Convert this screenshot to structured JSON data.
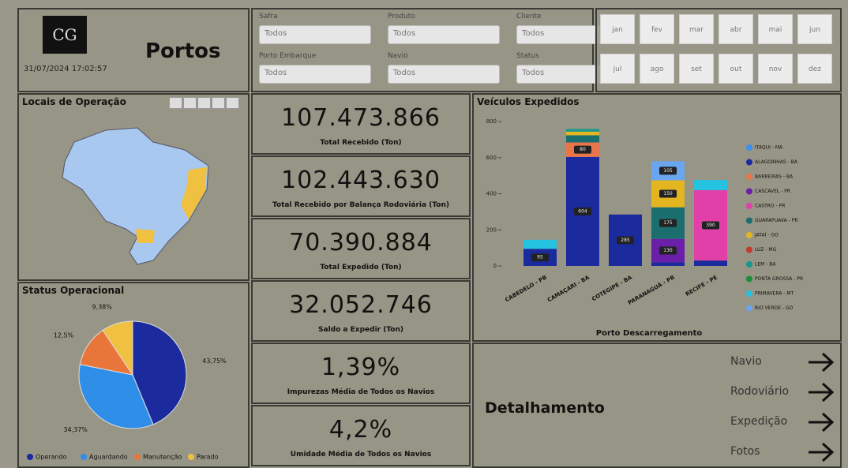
{
  "header": {
    "logo": "CG",
    "title": "Portos",
    "updated": "31/07/2024 17:02:57"
  },
  "filters": [
    {
      "label": "Safra",
      "value": "Todos"
    },
    {
      "label": "Produto",
      "value": "Todos"
    },
    {
      "label": "Cliente",
      "value": "Todos"
    },
    {
      "label": "Porto Embarque",
      "value": "Todos"
    },
    {
      "label": "Navio",
      "value": "Todos"
    },
    {
      "label": "Status",
      "value": "Todos"
    }
  ],
  "months": [
    "jan",
    "fev",
    "mar",
    "abr",
    "mai",
    "jun",
    "jul",
    "ago",
    "set",
    "out",
    "nov",
    "dez"
  ],
  "map": {
    "title": "Locais de Operação"
  },
  "kpis": [
    {
      "value": "107.473.866",
      "label": "Total Recebido (Ton)"
    },
    {
      "value": "102.443.630",
      "label": "Total Recebido por Balança Rodoviária (Ton)"
    },
    {
      "value": "70.390.884",
      "label": "Total Expedido (Ton)"
    },
    {
      "value": "32.052.746",
      "label": "Saldo a Expedir (Ton)"
    },
    {
      "value": "1,39%",
      "label": "Impurezas Média de Todos os Navios"
    },
    {
      "value": "4,2%",
      "label": "Umidade Média de Todos os Navios"
    }
  ],
  "detail": {
    "title": "Detalhamento",
    "links": [
      "Navio",
      "Rodoviário",
      "Expedição",
      "Fotos"
    ]
  },
  "chart_data": [
    {
      "type": "bar",
      "stacked": true,
      "title": "Veículos Expedidos",
      "xlabel": "Porto Descarregamento",
      "categories": [
        "CABEDELO - PB",
        "CAMAÇARI - BA",
        "COTEGIPE - BA",
        "PARANAGUÁ - PR",
        "RECIFE - PE"
      ],
      "ylim": [
        0,
        800
      ],
      "yticks": [
        0,
        200,
        400,
        600,
        800
      ],
      "series": [
        {
          "name": "ITAQUI - MA",
          "color": "#3d8ff0",
          "values": [
            null,
            null,
            null,
            null,
            null
          ]
        },
        {
          "name": "ALAGOINHAS - BA",
          "color": "#1b2a9c",
          "values": [
            95,
            604,
            285,
            20,
            30
          ]
        },
        {
          "name": "BARREIRAS - BA",
          "color": "#e8764a",
          "values": [
            null,
            80,
            null,
            null,
            null
          ]
        },
        {
          "name": "CASCAVEL - PR",
          "color": "#6a1fa8",
          "values": [
            null,
            null,
            null,
            130,
            null
          ]
        },
        {
          "name": "CASTRO - PR",
          "color": "#e040a8",
          "values": [
            null,
            null,
            null,
            null,
            390
          ]
        },
        {
          "name": "GUARAPUAVA - PR",
          "color": "#1b6e6e",
          "values": [
            null,
            40,
            null,
            175,
            null
          ]
        },
        {
          "name": "JATAÍ - GO",
          "color": "#e3b520",
          "values": [
            null,
            20,
            null,
            150,
            null
          ]
        },
        {
          "name": "LUZ - MG",
          "color": "#c43a2a",
          "values": [
            null,
            null,
            null,
            null,
            null
          ]
        },
        {
          "name": "LEM - BA",
          "color": "#17998a",
          "values": [
            null,
            15,
            null,
            null,
            null
          ]
        },
        {
          "name": "PONTA GROSSA - PR",
          "color": "#1e8c3a",
          "values": [
            null,
            null,
            null,
            null,
            null
          ]
        },
        {
          "name": "PRIMAVERA - MT",
          "color": "#24c3e0",
          "values": [
            50,
            null,
            null,
            null,
            56
          ]
        },
        {
          "name": "RIO VERDE - GO",
          "color": "#6aa5f0",
          "values": [
            null,
            null,
            null,
            105,
            null
          ]
        }
      ],
      "legend": "right"
    },
    {
      "type": "pie",
      "title": "Status Operacional",
      "categories": [
        "Operando",
        "Aguardando",
        "Manutenção",
        "Parado"
      ],
      "values": [
        43.75,
        34.37,
        12.5,
        9.38
      ],
      "value_labels": [
        "43,75%",
        "34,37%",
        "12,5%",
        "9,38%"
      ],
      "colors": [
        "#1b2a9c",
        "#2f8fe8",
        "#e8763a",
        "#f0c040"
      ],
      "legend": "bottom"
    }
  ]
}
